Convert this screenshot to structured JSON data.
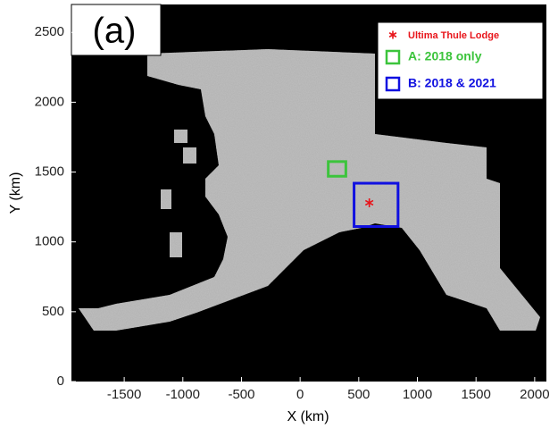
{
  "panel_label": "(a)",
  "chart_data": {
    "type": "map",
    "xlabel": "X (km)",
    "ylabel": "Y (km)",
    "xlim": [
      -1950,
      2100
    ],
    "ylim": [
      0,
      2700
    ],
    "xticks": [
      -1500,
      -1000,
      -500,
      0,
      500,
      1000,
      1500,
      2000
    ],
    "yticks": [
      0,
      500,
      1000,
      1500,
      2000,
      2500
    ],
    "markers": [
      {
        "name": "Ultima Thule Lodge",
        "color": "#e8141a",
        "x": 590,
        "y": 1280
      }
    ],
    "regions": [
      {
        "name": "A: 2018 only",
        "color": "#3cc43c",
        "x": [
          240,
          390
        ],
        "y": [
          1470,
          1575
        ]
      },
      {
        "name": "B: 2018 & 2021",
        "color": "#1010e0",
        "x": [
          460,
          835
        ],
        "y": [
          1110,
          1420
        ]
      }
    ]
  }
}
